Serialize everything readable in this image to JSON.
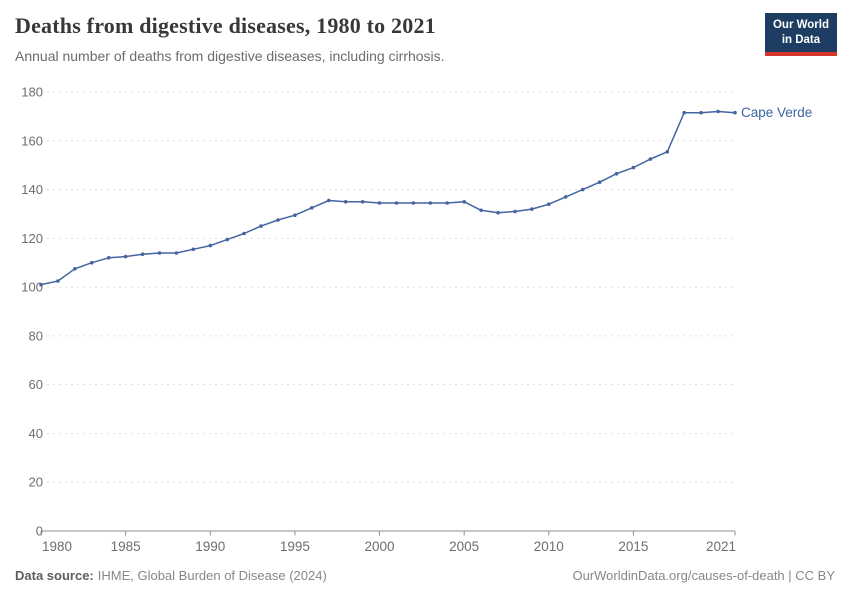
{
  "header": {
    "title": "Deaths from digestive diseases, 1980 to 2021",
    "subtitle": "Annual number of deaths from digestive diseases, including cirrhosis.",
    "logo": {
      "line1": "Our World",
      "line2": "in Data"
    }
  },
  "footer": {
    "source_label": "Data source:",
    "source_value": "IHME, Global Burden of Disease (2024)",
    "credit": "OurWorldinData.org/causes-of-death | CC BY"
  },
  "colors": {
    "line": "#4365a0",
    "entity_label": "#3d649f",
    "grid": "#dddddd",
    "axis": "#8f8f8f",
    "tick_text": "#6e6e6e",
    "logo_bg": "#1d3d63",
    "logo_accent": "#d7352c"
  },
  "chart_data": {
    "type": "line",
    "title": "Deaths from digestive diseases, 1980 to 2021",
    "subtitle": "Annual number of deaths from digestive diseases, including cirrhosis.",
    "xlabel": "",
    "ylabel": "",
    "x": [
      1980,
      1981,
      1982,
      1983,
      1984,
      1985,
      1986,
      1987,
      1988,
      1989,
      1990,
      1991,
      1992,
      1993,
      1994,
      1995,
      1996,
      1997,
      1998,
      1999,
      2000,
      2001,
      2002,
      2003,
      2004,
      2005,
      2006,
      2007,
      2008,
      2009,
      2010,
      2011,
      2012,
      2013,
      2014,
      2015,
      2016,
      2017,
      2018,
      2019,
      2020,
      2021
    ],
    "series": [
      {
        "name": "Cape Verde",
        "color": "#4365a0",
        "values": [
          101,
          102.5,
          107.5,
          110,
          112,
          112.5,
          113.5,
          114,
          114,
          115.5,
          117,
          119.5,
          122,
          125,
          127.5,
          129.5,
          132.5,
          135.5,
          135,
          135,
          134.5,
          134.5,
          134.5,
          134.5,
          134.5,
          135,
          131.5,
          130.5,
          131,
          132,
          134,
          137,
          140,
          143,
          146.5,
          149,
          152.5,
          155.5,
          171.5,
          171.5,
          172,
          171.5
        ]
      }
    ],
    "ylim": [
      0,
      180
    ],
    "yticks": [
      0,
      20,
      40,
      60,
      80,
      100,
      120,
      140,
      160,
      180
    ],
    "xticks": [
      1980,
      1985,
      1990,
      1995,
      2000,
      2005,
      2010,
      2015,
      2021
    ],
    "grid": "horizontal-dashed",
    "legend": "end-of-line-label"
  }
}
